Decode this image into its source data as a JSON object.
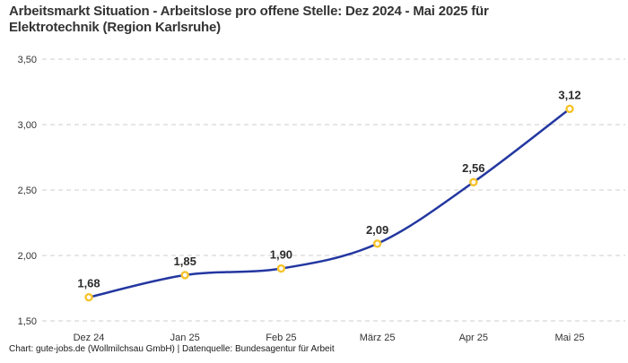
{
  "header": {
    "title_line1": "Arbeitsmarkt Situation - Arbeitslose pro offene Stelle: Dez 2024 - Mai 2025 für",
    "title_line2": "Elektrotechnik (Region Karlsruhe)"
  },
  "footer": {
    "credit": "Chart: gute-jobs.de (Wollmilchsau GmbH) | Datenquelle: Bundesagentur für Arbeit"
  },
  "chart_data": {
    "type": "line",
    "title": "Arbeitsmarkt Situation - Arbeitslose pro offene Stelle: Dez 2024 - Mai 2025 für Elektrotechnik (Region Karlsruhe)",
    "categories": [
      "Dez 24",
      "Jan 25",
      "Feb 25",
      "März 25",
      "Apr 25",
      "Mai 25"
    ],
    "values": [
      1.68,
      1.85,
      1.9,
      2.09,
      2.56,
      3.12
    ],
    "value_labels": [
      "1,68",
      "1,85",
      "1,90",
      "2,09",
      "2,56",
      "3,12"
    ],
    "xlabel": "",
    "ylabel": "",
    "ylim": [
      1.5,
      3.5
    ],
    "yticks": [
      1.5,
      2.0,
      2.5,
      3.0,
      3.5
    ],
    "ytick_labels": [
      "1,50",
      "2,00",
      "2,50",
      "3,00",
      "3,50"
    ],
    "grid": "horizontal-dashed",
    "legend": "none",
    "line_style": "smooth-spline",
    "colors": {
      "line": "#2337a0",
      "marker_stroke": "#f7c32a",
      "marker_fill": "#ffffff",
      "grid": "#cccccc",
      "text": "#333333"
    }
  }
}
